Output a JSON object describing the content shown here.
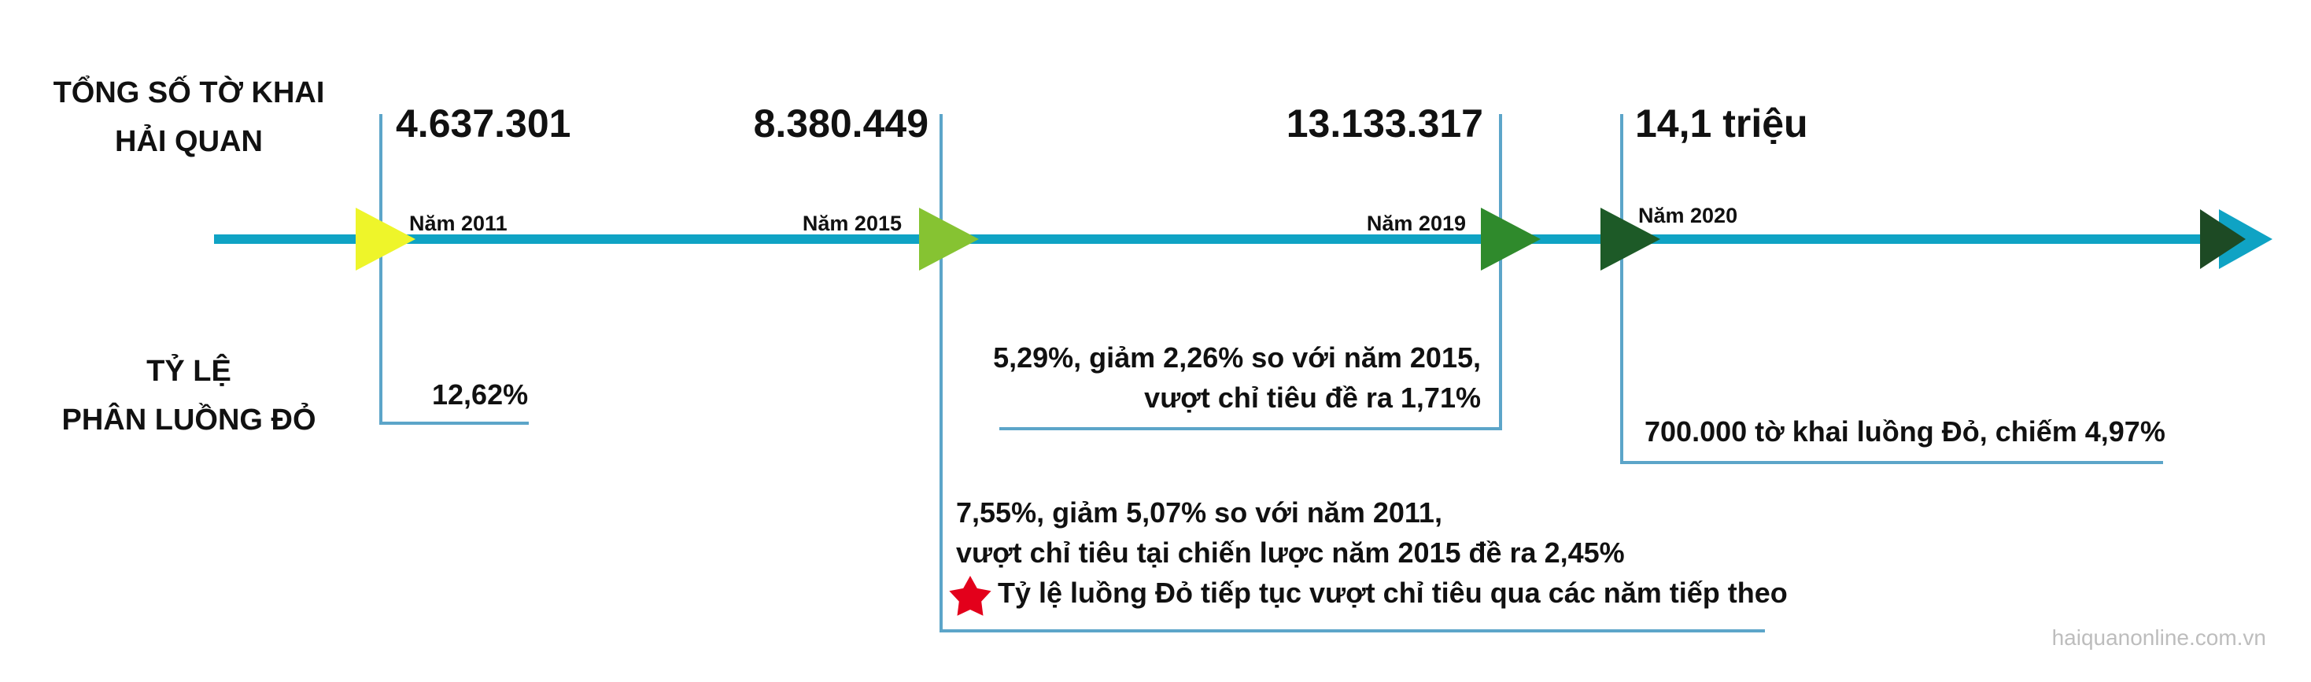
{
  "labels": {
    "total_line1": "TỔNG SỐ TỜ KHAI",
    "total_line2": "HẢI QUAN",
    "ratio_line1": "TỶ LỆ",
    "ratio_line2": "PHÂN LUỒNG ĐỎ"
  },
  "milestones": [
    {
      "year": "Năm 2011",
      "total": "4.637.301",
      "ratio_lines": [
        "12,62%"
      ],
      "marker_color": "#eef52a"
    },
    {
      "year": "Năm 2015",
      "total": "8.380.449",
      "ratio_lines": [
        "7,55%, giảm 5,07% so với năm 2011,",
        "vượt chỉ tiêu tại chiến lược năm 2015 đề ra 2,45%"
      ],
      "note": "Tỷ lệ luồng Đỏ tiếp tục vượt chỉ tiêu qua các năm tiếp theo",
      "note_icon": "star-icon",
      "note_icon_color": "#e3001b",
      "marker_color": "#86c332"
    },
    {
      "year": "Năm 2019",
      "total": "13.133.317",
      "ratio_lines": [
        "5,29%, giảm 2,26% so với năm 2015,",
        "vượt chỉ tiêu đề ra 1,71%"
      ],
      "marker_color": "#2f8a2c"
    },
    {
      "year": "Năm 2020",
      "total": "14,1 triệu",
      "ratio_lines": [
        "700.000 tờ khai luồng Đỏ, chiếm 4,97%"
      ],
      "marker_color": "#1d5a27"
    }
  ],
  "colors": {
    "timeline": "#0fa3c4",
    "bracket": "#5ca5c9",
    "end_arrow_dark": "#1d4a24"
  },
  "watermark": "haiquanonline.com.vn"
}
